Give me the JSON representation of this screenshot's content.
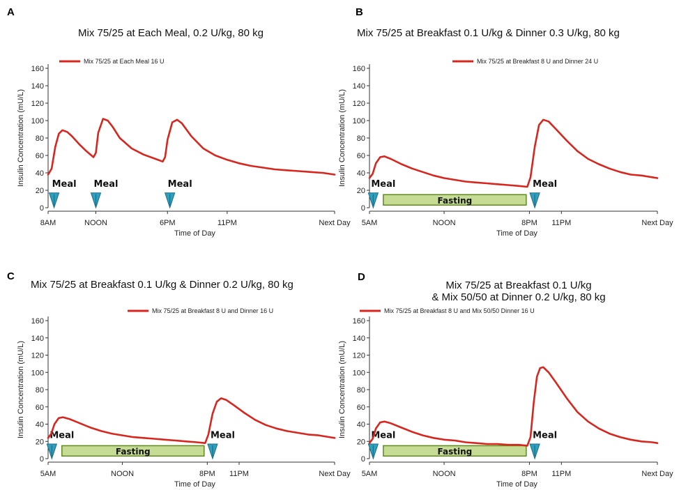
{
  "colors": {
    "series": "#d7261e",
    "marker_fill": "#2f9fbd",
    "marker_stroke": "#1c6e86",
    "fasting_fill": "#c6dc94",
    "fasting_stroke": "#5f8a1e"
  },
  "chart_data": [
    {
      "letter": "A",
      "type": "line",
      "title": [
        "Mix 75/25 at Each Meal, 0.2 U/kg,  80 kg"
      ],
      "xlabel": "Time of Day",
      "ylabel": "Insulin Concentration (mU/L)",
      "x_unit": "hours from 8AM",
      "xlim": [
        0,
        24
      ],
      "ylim": [
        0,
        160
      ],
      "yticks": [
        0,
        20,
        40,
        60,
        80,
        100,
        120,
        140,
        160
      ],
      "xticks": [
        {
          "x": 0,
          "label": "8AM"
        },
        {
          "x": 4,
          "label": "NOON"
        },
        {
          "x": 10,
          "label": "6PM"
        },
        {
          "x": 15,
          "label": "11PM"
        },
        {
          "x": 24,
          "label": "Next Day"
        }
      ],
      "series": [
        {
          "name": "Mix 75/25 at Each Meal 16 U",
          "x": [
            0,
            0.3,
            0.6,
            0.9,
            1.2,
            1.6,
            2,
            2.6,
            3.2,
            3.8,
            4,
            4.2,
            4.6,
            5,
            5.4,
            6,
            7,
            8,
            9,
            9.6,
            9.8,
            10,
            10.4,
            10.8,
            11.2,
            12,
            13,
            14,
            15,
            16,
            17,
            18,
            19,
            20,
            21,
            22,
            23,
            24
          ],
          "y": [
            38,
            45,
            70,
            85,
            89,
            87,
            82,
            73,
            65,
            58,
            63,
            86,
            102,
            100,
            93,
            80,
            68,
            61,
            56,
            53,
            58,
            78,
            98,
            101,
            97,
            82,
            68,
            60,
            55,
            51,
            48,
            46,
            44,
            43,
            42,
            41,
            40,
            38
          ]
        }
      ],
      "meals": [
        {
          "x": 0.5,
          "label": "Meal"
        },
        {
          "x": 4.0,
          "label": "Meal"
        },
        {
          "x": 10.2,
          "label": "Meal"
        }
      ],
      "fasting": null
    },
    {
      "letter": "B",
      "type": "line",
      "title": [
        "Mix 75/25 at Breakfast 0.1 U/kg & Dinner 0.3 U/kg,  80 kg"
      ],
      "xlabel": "Time of Day",
      "ylabel": "Insulin Concentration (mU/L)",
      "x_unit": "hours from 5AM",
      "xlim": [
        0,
        27
      ],
      "ylim": [
        0,
        160
      ],
      "yticks": [
        0,
        20,
        40,
        60,
        80,
        100,
        120,
        140,
        160
      ],
      "xticks": [
        {
          "x": 0,
          "label": "5AM"
        },
        {
          "x": 7,
          "label": "NOON"
        },
        {
          "x": 15,
          "label": "8PM"
        },
        {
          "x": 18,
          "label": "11PM"
        },
        {
          "x": 27,
          "label": "Next Day"
        }
      ],
      "series": [
        {
          "name": "Mix 75/25 at Breakfast 8 U and Dinner 24 U",
          "x": [
            0,
            0.3,
            0.6,
            1,
            1.4,
            2,
            3,
            4,
            5,
            6,
            7,
            8,
            9,
            10,
            11,
            12,
            13,
            14,
            14.8,
            15.1,
            15.5,
            15.9,
            16.3,
            16.8,
            17.5,
            18.5,
            19.5,
            20.5,
            21.5,
            22.5,
            23.5,
            24.5,
            25.5,
            26.5,
            27
          ],
          "y": [
            34,
            39,
            51,
            58,
            59,
            56,
            50,
            45,
            41,
            37,
            34,
            32,
            30,
            29,
            28,
            27,
            26,
            25,
            24,
            35,
            70,
            95,
            101,
            99,
            90,
            77,
            65,
            56,
            50,
            45,
            41,
            38,
            37,
            35,
            34
          ]
        }
      ],
      "meals": [
        {
          "x": 0.35,
          "label": "Meal"
        },
        {
          "x": 15.5,
          "label": "Meal"
        }
      ],
      "fasting": {
        "x0": 1.3,
        "x1": 14.7,
        "label": "Fasting"
      }
    },
    {
      "letter": "C",
      "type": "line",
      "title": [
        "Mix 75/25 at Breakfast 0.1 U/kg & Dinner 0.2 U/kg,  80 kg"
      ],
      "xlabel": "Time of Day",
      "ylabel": "Insulin Concentration (mU/L)",
      "x_unit": "hours from 5AM",
      "xlim": [
        0,
        27
      ],
      "ylim": [
        0,
        160
      ],
      "yticks": [
        0,
        20,
        40,
        60,
        80,
        100,
        120,
        140,
        160
      ],
      "xticks": [
        {
          "x": 0,
          "label": "5AM"
        },
        {
          "x": 7,
          "label": "NOON"
        },
        {
          "x": 15,
          "label": "8PM"
        },
        {
          "x": 18,
          "label": "11PM"
        },
        {
          "x": 27,
          "label": "Next Day"
        }
      ],
      "series": [
        {
          "name": "Mix 75/25 at Breakfast 8 U and Dinner 16 U",
          "x": [
            0,
            0.3,
            0.6,
            1,
            1.4,
            2,
            3,
            4,
            5,
            6,
            7,
            8,
            9,
            10,
            11,
            12,
            13,
            14,
            14.8,
            15.1,
            15.5,
            15.9,
            16.3,
            16.8,
            17.5,
            18.5,
            19.5,
            20.5,
            21.5,
            22.5,
            23.5,
            24.5,
            25.5,
            26.5,
            27
          ],
          "y": [
            24,
            29,
            40,
            47,
            48,
            46,
            41,
            36,
            32,
            29,
            27,
            25,
            24,
            23,
            22,
            21,
            20,
            19,
            18,
            28,
            52,
            66,
            70,
            68,
            62,
            53,
            45,
            39,
            35,
            32,
            30,
            28,
            27,
            25,
            24
          ]
        }
      ],
      "meals": [
        {
          "x": 0.35,
          "label": "Meal"
        },
        {
          "x": 15.5,
          "label": "Meal"
        }
      ],
      "fasting": {
        "x0": 1.3,
        "x1": 14.7,
        "label": "Fasting"
      }
    },
    {
      "letter": "D",
      "type": "line",
      "title": [
        "Mix 75/25 at Breakfast 0.1 U/kg",
        "& Mix 50/50 at Dinner 0.2 U/kg,  80 kg"
      ],
      "xlabel": "Time of Day",
      "ylabel": "Insulin Concentration (mU/L)",
      "x_unit": "hours from 5AM",
      "xlim": [
        0,
        27
      ],
      "ylim": [
        0,
        160
      ],
      "yticks": [
        0,
        20,
        40,
        60,
        80,
        100,
        120,
        140,
        160
      ],
      "xticks": [
        {
          "x": 0,
          "label": "5AM"
        },
        {
          "x": 7,
          "label": "NOON"
        },
        {
          "x": 15,
          "label": "8PM"
        },
        {
          "x": 18,
          "label": "11PM"
        },
        {
          "x": 27,
          "label": "Next Day"
        }
      ],
      "series": [
        {
          "name": "Mix 75/25 at Breakfast 8 U and Mix 50/50 Dinner 16 U",
          "x": [
            0,
            0.3,
            0.6,
            1,
            1.4,
            2,
            3,
            4,
            5,
            6,
            7,
            8,
            9,
            10,
            11,
            12,
            13,
            14,
            14.8,
            15.1,
            15.4,
            15.7,
            16,
            16.3,
            16.8,
            17.5,
            18.5,
            19.5,
            20.5,
            21.5,
            22.5,
            23.5,
            24.5,
            25.5,
            26.5,
            27
          ],
          "y": [
            18,
            23,
            35,
            42,
            43,
            41,
            36,
            31,
            27,
            24,
            22,
            21,
            19,
            18,
            17,
            17,
            16,
            16,
            15,
            25,
            65,
            95,
            105,
            106,
            100,
            88,
            70,
            54,
            43,
            35,
            29,
            25,
            22,
            20,
            19,
            18
          ]
        }
      ],
      "meals": [
        {
          "x": 0.35,
          "label": "Meal"
        },
        {
          "x": 15.5,
          "label": "Meal"
        }
      ],
      "fasting": {
        "x0": 1.3,
        "x1": 14.7,
        "label": "Fasting"
      }
    }
  ]
}
